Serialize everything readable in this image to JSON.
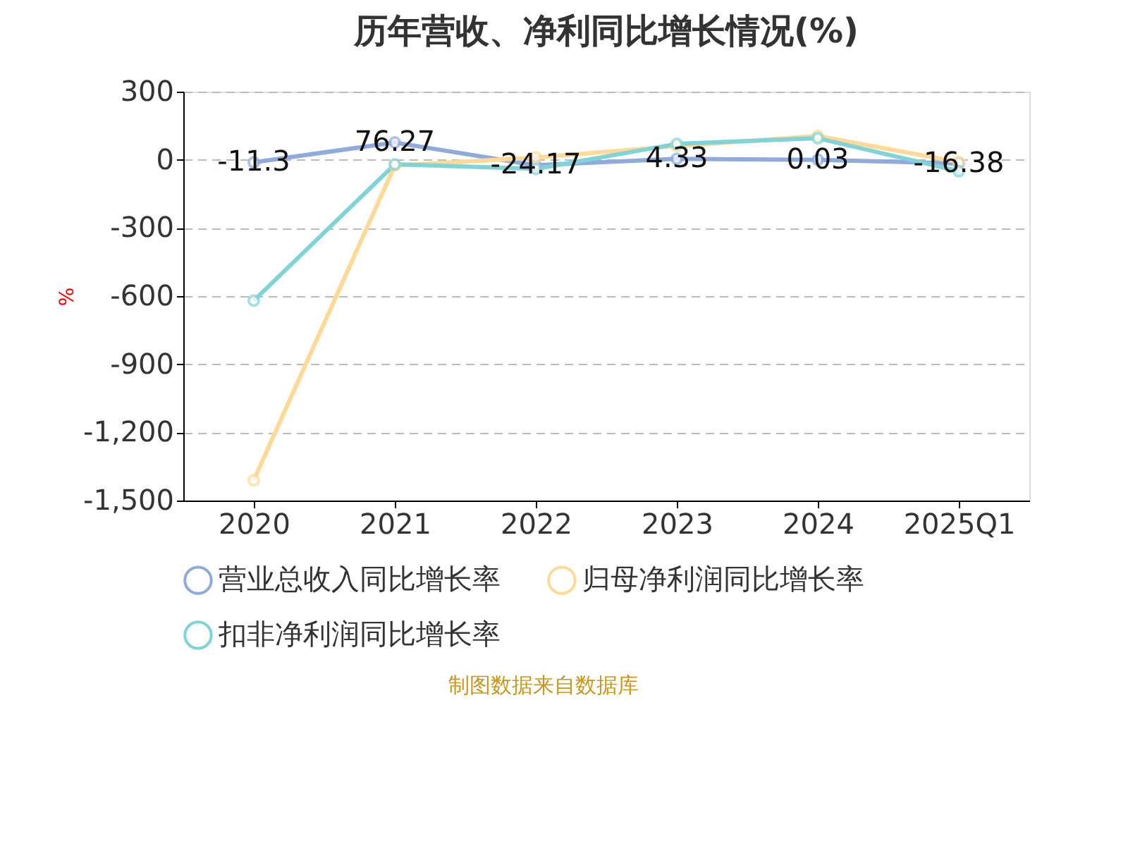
{
  "chart_data": {
    "type": "line",
    "title": "历年营收、净利同比增长情况(%)",
    "ylabel": "%",
    "categories": [
      "2020",
      "2021",
      "2022",
      "2023",
      "2024",
      "2025Q1"
    ],
    "series": [
      {
        "name": "营业总收入同比增长率",
        "color": "#8faadc",
        "values": [
          -11.3,
          76.27,
          -24.17,
          4.33,
          0.03,
          -16.38
        ],
        "value_labels": [
          "-11.3",
          "76.27",
          "-24.17",
          "4.33",
          "0.03",
          "-16.38"
        ]
      },
      {
        "name": "归母净利润同比增长率",
        "color": "#ffd996",
        "values": [
          -1410,
          -25,
          10,
          60,
          105,
          -10
        ]
      },
      {
        "name": "扣非净利润同比增长率",
        "color": "#80d4d8",
        "values": [
          -620,
          -20,
          -40,
          70,
          95,
          -50
        ]
      }
    ],
    "ylim": [
      -1500,
      300
    ],
    "yticks": [
      300,
      0,
      -300,
      -600,
      -900,
      {
        "value": -1200,
        "label": "-1,200"
      },
      {
        "value": -1500,
        "label": "-1,500"
      }
    ],
    "grid": "y",
    "legend": "bottom",
    "marker": "circle",
    "line_style": "solid",
    "annotations": [
      "制图数据来自数据库"
    ]
  }
}
